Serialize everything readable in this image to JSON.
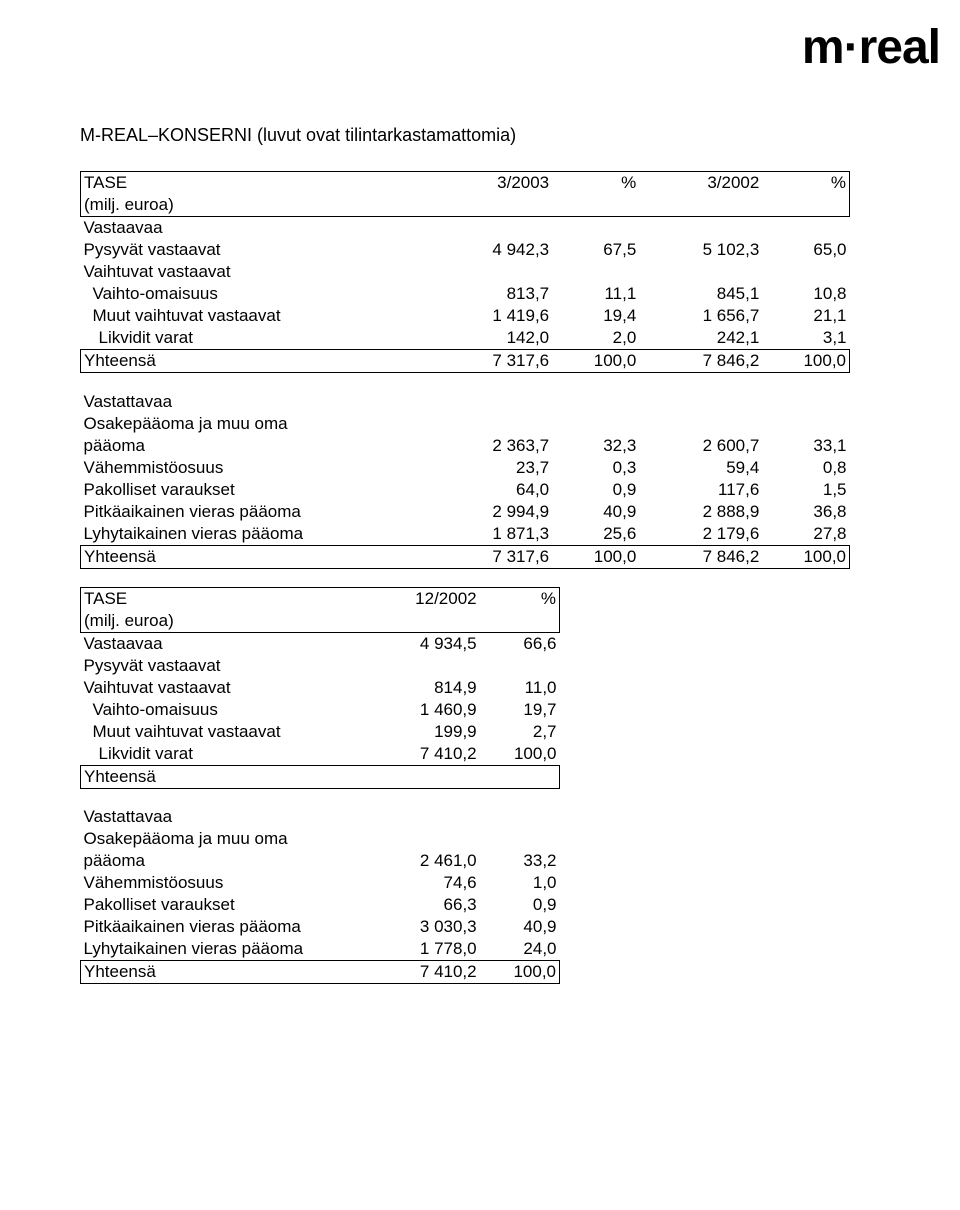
{
  "logo_text": "m·real",
  "page_title": "M-REAL–KONSERNI (luvut ovat tilintarkastamattomia)",
  "table1": {
    "header": {
      "c0": "TASE",
      "c1": "3/2003",
      "c2": "%",
      "c3": "3/2002",
      "c4": "%"
    },
    "sub": "(milj. euroa)",
    "rows": [
      {
        "label": "Vastaavaa",
        "indent": 0,
        "c1": "",
        "c2": "",
        "c3": "",
        "c4": ""
      },
      {
        "label": "Pysyvät vastaavat",
        "indent": 0,
        "c1": "4 942,3",
        "c2": "67,5",
        "c3": "5 102,3",
        "c4": "65,0"
      },
      {
        "label": "Vaihtuvat vastaavat",
        "indent": 0,
        "c1": "",
        "c2": "",
        "c3": "",
        "c4": ""
      },
      {
        "label": "Vaihto-omaisuus",
        "indent": 1,
        "c1": "813,7",
        "c2": "11,1",
        "c3": "845,1",
        "c4": "10,8"
      },
      {
        "label": "Muut vaihtuvat vastaavat",
        "indent": 1,
        "c1": "1 419,6",
        "c2": "19,4",
        "c3": "1 656,7",
        "c4": "21,1"
      },
      {
        "label": "Likvidit varat",
        "indent": 2,
        "c1": "142,0",
        "c2": "2,0",
        "c3": "242,1",
        "c4": "3,1"
      }
    ],
    "total1": {
      "label": "Yhteensä",
      "c1": "7 317,6",
      "c2": "100,0",
      "c3": "7 846,2",
      "c4": "100,0"
    },
    "rows2": [
      {
        "label": "Vastattavaa",
        "indent": 0,
        "c1": "",
        "c2": "",
        "c3": "",
        "c4": ""
      },
      {
        "label": "Osakepääoma ja muu oma",
        "indent": 0,
        "c1": "",
        "c2": "",
        "c3": "",
        "c4": ""
      },
      {
        "label": "pääoma",
        "indent": 0,
        "c1": "2 363,7",
        "c2": "32,3",
        "c3": "2 600,7",
        "c4": "33,1"
      },
      {
        "label": "Vähemmistöosuus",
        "indent": 0,
        "c1": "23,7",
        "c2": "0,3",
        "c3": "59,4",
        "c4": "0,8"
      },
      {
        "label": "Pakolliset varaukset",
        "indent": 0,
        "c1": "64,0",
        "c2": "0,9",
        "c3": "117,6",
        "c4": "1,5"
      },
      {
        "label": "Pitkäaikainen vieras pääoma",
        "indent": 0,
        "c1": "2 994,9",
        "c2": "40,9",
        "c3": "2 888,9",
        "c4": "36,8"
      },
      {
        "label": "Lyhytaikainen vieras pääoma",
        "indent": 0,
        "c1": "1 871,3",
        "c2": "25,6",
        "c3": "2 179,6",
        "c4": "27,8"
      }
    ],
    "total2": {
      "label": "Yhteensä",
      "c1": "7 317,6",
      "c2": "100,0",
      "c3": "7 846,2",
      "c4": "100,0"
    }
  },
  "table2": {
    "header": {
      "c0": "TASE",
      "c1": "12/2002",
      "c2": "%"
    },
    "sub": "(milj. euroa)",
    "rows": [
      {
        "label": "Vastaavaa",
        "indent": 0,
        "c1": "4 934,5",
        "c2": "66,6"
      },
      {
        "label": "Pysyvät vastaavat",
        "indent": 0,
        "c1": "",
        "c2": ""
      },
      {
        "label": "Vaihtuvat vastaavat",
        "indent": 0,
        "c1": "814,9",
        "c2": "11,0"
      },
      {
        "label": "Vaihto-omaisuus",
        "indent": 1,
        "c1": "1 460,9",
        "c2": "19,7"
      },
      {
        "label": "Muut vaihtuvat vastaavat",
        "indent": 1,
        "c1": "199,9",
        "c2": "2,7"
      },
      {
        "label": "Likvidit varat",
        "indent": 2,
        "c1": "7 410,2",
        "c2": "100,0"
      }
    ],
    "total1": {
      "label": "Yhteensä",
      "c1": "",
      "c2": ""
    },
    "rows2": [
      {
        "label": "Vastattavaa",
        "indent": 0,
        "c1": "",
        "c2": ""
      },
      {
        "label": "Osakepääoma ja muu oma",
        "indent": 0,
        "c1": "",
        "c2": ""
      },
      {
        "label": "pääoma",
        "indent": 0,
        "c1": "2 461,0",
        "c2": "33,2"
      },
      {
        "label": "Vähemmistöosuus",
        "indent": 0,
        "c1": "74,6",
        "c2": "1,0"
      },
      {
        "label": "Pakolliset varaukset",
        "indent": 0,
        "c1": "66,3",
        "c2": "0,9"
      },
      {
        "label": "Pitkäaikainen vieras pääoma",
        "indent": 0,
        "c1": "3 030,3",
        "c2": "40,9"
      },
      {
        "label": "Lyhytaikainen vieras pääoma",
        "indent": 0,
        "c1": "1 778,0",
        "c2": "24,0"
      }
    ],
    "total2": {
      "label": "Yhteensä",
      "c1": "7 410,2",
      "c2": "100,0"
    }
  }
}
